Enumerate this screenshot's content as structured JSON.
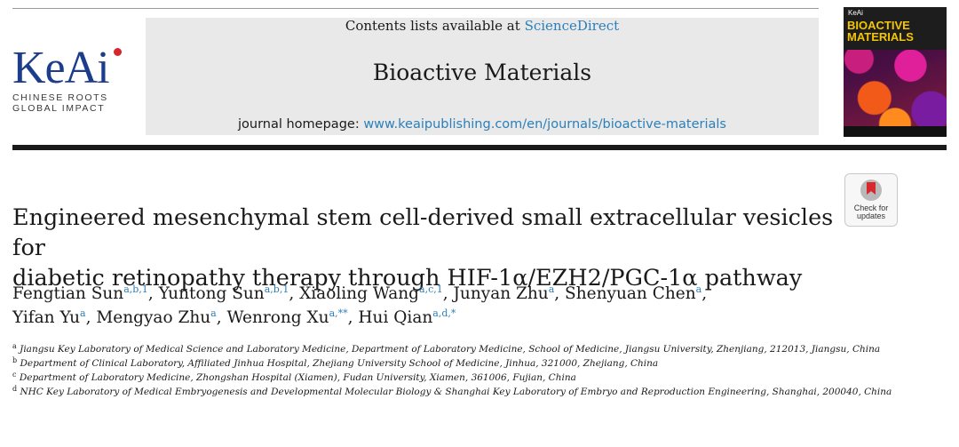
{
  "publisher": {
    "logo_text": "KeAi",
    "tagline_line1": "CHINESE ROOTS",
    "tagline_line2": "GLOBAL IMPACT"
  },
  "masthead": {
    "contents_prefix": "Contents lists available at",
    "contents_link": "ScienceDirect",
    "journal_title": "Bioactive Materials",
    "homepage_prefix": "journal homepage:",
    "homepage_url": "www.keaipublishing.com/en/journals/bioactive-materials"
  },
  "cover": {
    "publisher": "KeAi",
    "title_line1": "BIOACTIVE",
    "title_line2": "MATERIALS"
  },
  "check_updates": {
    "line1": "Check for",
    "line2": "updates"
  },
  "article": {
    "title_line1": "Engineered mesenchymal stem cell-derived small extracellular vesicles for",
    "title_line2": "diabetic retinopathy therapy through HIF-1α/EZH2/PGC-1α pathway",
    "authors": [
      {
        "name": "Fengtian Sun",
        "sup": "a,b,1",
        "sep": ","
      },
      {
        "name": "Yuntong Sun",
        "sup": "a,b,1",
        "sep": ","
      },
      {
        "name": "Xiaoling Wang",
        "sup": "a,c,1",
        "sep": ","
      },
      {
        "name": "Junyan Zhu",
        "sup": "a",
        "sep": ","
      },
      {
        "name": "Shenyuan Chen",
        "sup": "a",
        "sep": ","
      },
      {
        "name": "Yifan Yu",
        "sup": "a",
        "sep": ","
      },
      {
        "name": "Mengyao Zhu",
        "sup": "a",
        "sep": ","
      },
      {
        "name": "Wenrong Xu",
        "sup": "a,**",
        "sep": ","
      },
      {
        "name": "Hui Qian",
        "sup": "a,d,*",
        "sep": ""
      }
    ],
    "affiliations": [
      {
        "key": "a",
        "text": "Jiangsu Key Laboratory of Medical Science and Laboratory Medicine, Department of Laboratory Medicine, School of Medicine, Jiangsu University, Zhenjiang, 212013, Jiangsu, China"
      },
      {
        "key": "b",
        "text": "Department of Clinical Laboratory, Affiliated Jinhua Hospital, Zhejiang University School of Medicine, Jinhua, 321000, Zhejiang, China"
      },
      {
        "key": "c",
        "text": "Department of Laboratory Medicine, Zhongshan Hospital (Xiamen), Fudan University, Xiamen, 361006, Fujian, China"
      },
      {
        "key": "d",
        "text": "NHC Key Laboratory of Medical Embryogenesis and Developmental Molecular Biology & Shanghai Key Laboratory of Embryo and Reproduction Engineering, Shanghai, 200040, China"
      }
    ]
  }
}
